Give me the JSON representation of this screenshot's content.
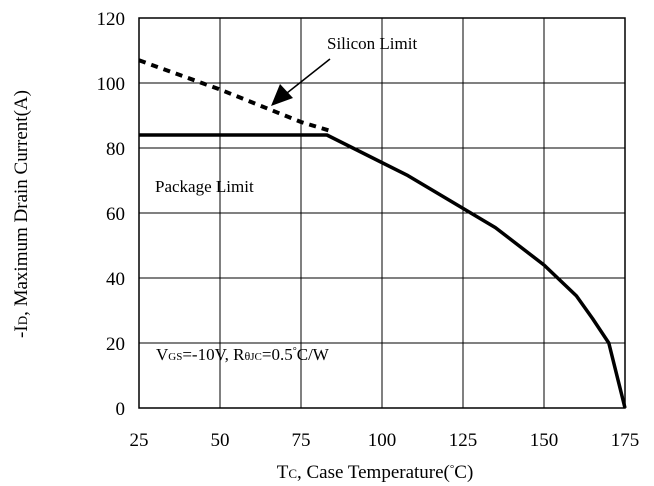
{
  "chart_data": {
    "type": "line",
    "title": "",
    "xlabel": "Tc, Case Temperature(°C)",
    "ylabel": "-ID, Maximum Drain Current(A)",
    "xlim": [
      25,
      175
    ],
    "ylim": [
      0,
      120
    ],
    "x_ticks": [
      25,
      50,
      75,
      100,
      125,
      150,
      175
    ],
    "y_ticks": [
      0,
      20,
      40,
      60,
      80,
      100,
      120
    ],
    "grid": true,
    "series": [
      {
        "name": "Silicon Limit",
        "style": "dashed",
        "x": [
          25,
          50,
          65,
          75,
          85
        ],
        "y": [
          107,
          98,
          92,
          88,
          85
        ]
      },
      {
        "name": "Package Limit",
        "style": "solid",
        "x": [
          25,
          83,
          108,
          135,
          150,
          160,
          165,
          170,
          175
        ],
        "y": [
          84,
          84,
          71.5,
          55.5,
          44,
          34.5,
          27.5,
          20,
          0
        ]
      }
    ],
    "annotations": {
      "silicon_limit": "Silicon Limit",
      "package_limit": "Package Limit",
      "conditions": "VGS=-10V, RθJC=0.5°C/W"
    }
  }
}
